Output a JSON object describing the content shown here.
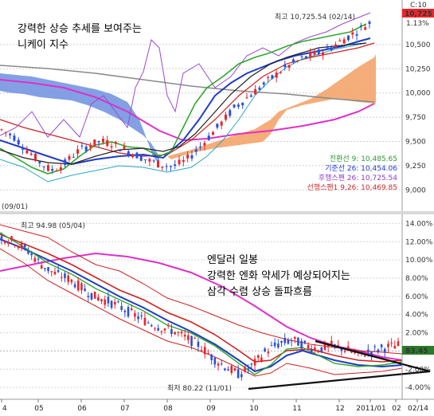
{
  "annotations": {
    "top_title_line1": "강력한 상승 추세를 보여주는",
    "top_title_line2": "니케이 지수",
    "bottom_title_line1": "엔달러 일봉",
    "bottom_title_line2": "강력한 엔화 약세가 예상되어지는",
    "bottom_title_line3": "삼각 수렴 상승 돌파흐름",
    "top_high_label": "최고 10,725.54 (02/14)",
    "top_left_date": "(09/01)",
    "bottom_high_label": "최고 94.98 (05/04)",
    "bottom_low_label": "최저 80.22 (11/01)"
  },
  "top_panel": {
    "corner_label": "C:10",
    "price_badge": "10,725",
    "pct_badge": "1.13%",
    "badge_color": "#e8262b",
    "indicators": [
      {
        "text": "전환선 9: 10,485.65",
        "color": "#2e9a2e"
      },
      {
        "text": "기준선 26: 10,454.06",
        "color": "#1e3cc8"
      },
      {
        "text": "후행스팬 26: 10,725.54",
        "color": "#8a3cc8"
      },
      {
        "text": "선행스팬1 9,26: 10,469.85",
        "color": "#cc2a2a"
      }
    ]
  },
  "bottom_panel": {
    "price_badge": "83.45"
  },
  "chart_data": [
    {
      "type": "line",
      "subject": "Nikkei",
      "title": "",
      "y_axis_right": {
        "ticks": [
          "10,500",
          "10,250",
          "10,000",
          "9,750",
          "9,500",
          "9,250",
          "9,000"
        ],
        "values": [
          10500,
          10250,
          10000,
          9750,
          9500,
          9250,
          9000
        ],
        "ylim": [
          8780,
          10960
        ]
      },
      "series_close_approx": [
        9620,
        9550,
        9420,
        9300,
        9200,
        9250,
        9380,
        9450,
        9500,
        9480,
        9420,
        9360,
        9300,
        9260,
        9240,
        9300,
        9420,
        9560,
        9700,
        9850,
        9950,
        10050,
        10150,
        10250,
        10320,
        10380,
        10420,
        10480,
        10560,
        10640,
        10725
      ],
      "high": {
        "value": 10725.54,
        "date": "02/14"
      },
      "ichimoku_latest": {
        "tenkan_9": 10485.65,
        "kijun_26": 10454.06,
        "chikou_26": 10725.54,
        "senkou1_9_26": 10469.85
      }
    },
    {
      "type": "line",
      "subject": "JPY/USD daily",
      "title": "",
      "y_axis_right": {
        "ticks": [
          "14.00%",
          "12.00%",
          "10.00%",
          "8.00%",
          "6.00%",
          "4.00%",
          "2.00%",
          "0.00%",
          "-2.00%",
          "-4.00%"
        ],
        "values": [
          14,
          12,
          10,
          8,
          6,
          4,
          2,
          0,
          -2,
          -4
        ],
        "ylim": [
          -5.3,
          15.0
        ]
      },
      "x_axis": {
        "ticks": [
          "4",
          "05",
          "06",
          "07",
          "08",
          "09",
          "10",
          "11",
          "12",
          "2011/01",
          "02",
          "02/14"
        ]
      },
      "series_pct_approx": [
        12.5,
        12.0,
        11.0,
        9.5,
        8.5,
        8.0,
        7.0,
        6.0,
        5.5,
        4.8,
        4.0,
        3.2,
        2.6,
        2.2,
        1.4,
        0.6,
        -0.8,
        -1.8,
        -2.6,
        -1.6,
        0.0,
        0.8,
        1.2,
        0.6,
        0.2,
        0.6,
        0.2,
        -0.4,
        0.0,
        0.4,
        0.6
      ],
      "high": {
        "value": 94.98,
        "date": "05/04"
      },
      "low": {
        "value": 80.22,
        "date": "11/01"
      }
    }
  ]
}
